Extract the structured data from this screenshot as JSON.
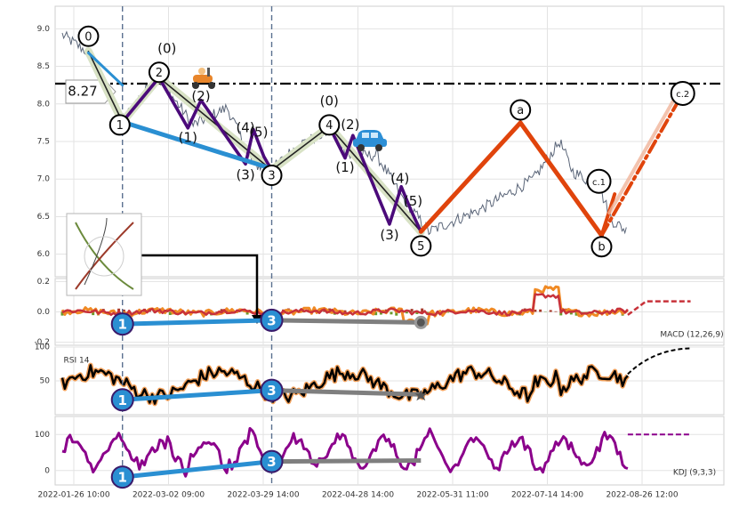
{
  "chart_data": {
    "type": "line",
    "title": "",
    "x_ticks": [
      "2022-01-26 10:00",
      "2022-03-02 09:00",
      "2022-03-29 14:00",
      "2022-04-28 14:00",
      "2022-05-31 11:00",
      "2022-07-14 14:00",
      "2022-08-26 12:00"
    ],
    "price_panel": {
      "ylim": [
        5.7,
        9.3
      ],
      "yticks": [
        "6.0",
        "6.5",
        "7.0",
        "7.5",
        "8.0",
        "8.5",
        "9.0"
      ],
      "horizontal_line": {
        "value": 8.27,
        "label": "8.27"
      },
      "price_path": [
        [
          0.0,
          8.92
        ],
        [
          1.0,
          8.68
        ],
        [
          2.3,
          7.78
        ],
        [
          3.6,
          8.38
        ],
        [
          5.0,
          7.72
        ],
        [
          6.3,
          7.95
        ],
        [
          7.3,
          7.2
        ],
        [
          8.0,
          7.12
        ],
        [
          9.0,
          7.45
        ],
        [
          10.3,
          7.65
        ],
        [
          11.0,
          7.3
        ],
        [
          12.0,
          7.32
        ],
        [
          13.0,
          6.75
        ],
        [
          14.0,
          6.3
        ],
        [
          15.0,
          6.45
        ],
        [
          16.0,
          6.6
        ],
        [
          17.0,
          6.8
        ],
        [
          18.0,
          7.0
        ],
        [
          19.0,
          7.5
        ],
        [
          19.5,
          7.1
        ],
        [
          20.5,
          6.9
        ],
        [
          21.0,
          6.45
        ],
        [
          21.6,
          6.3
        ]
      ],
      "wave_labels": [
        {
          "t": "0",
          "x": 1.0,
          "y": 8.9,
          "circle": true
        },
        {
          "t": "(0)",
          "x": 4.0,
          "y": 8.73,
          "circle": false
        },
        {
          "t": "2",
          "x": 3.7,
          "y": 8.42,
          "circle": true
        },
        {
          "t": "1",
          "x": 2.2,
          "y": 7.72,
          "circle": true
        },
        {
          "t": "(2)",
          "x": 5.3,
          "y": 8.1,
          "circle": false
        },
        {
          "t": "(1)",
          "x": 4.8,
          "y": 7.55,
          "circle": false
        },
        {
          "t": "(4)",
          "x": 7.0,
          "y": 7.68,
          "circle": false
        },
        {
          "t": "(5)",
          "x": 7.5,
          "y": 7.62,
          "circle": false
        },
        {
          "t": "(3)",
          "x": 7.0,
          "y": 7.05,
          "circle": false
        },
        {
          "t": "3",
          "x": 8.0,
          "y": 7.05,
          "circle": true
        },
        {
          "t": "(0)",
          "x": 10.2,
          "y": 8.03,
          "circle": false
        },
        {
          "t": "4",
          "x": 10.2,
          "y": 7.72,
          "circle": true
        },
        {
          "t": "(2)",
          "x": 11.0,
          "y": 7.72,
          "circle": false
        },
        {
          "t": "(1)",
          "x": 10.8,
          "y": 7.15,
          "circle": false
        },
        {
          "t": "(4)",
          "x": 12.9,
          "y": 7.0,
          "circle": false
        },
        {
          "t": "(5)",
          "x": 13.4,
          "y": 6.7,
          "circle": false
        },
        {
          "t": "(3)",
          "x": 12.5,
          "y": 6.25,
          "circle": false
        },
        {
          "t": "5",
          "x": 13.7,
          "y": 6.11,
          "circle": true
        },
        {
          "t": "a",
          "x": 17.5,
          "y": 7.92,
          "circle": true
        },
        {
          "t": "c.1",
          "x": 20.5,
          "y": 6.97,
          "circle": true
        },
        {
          "t": "b",
          "x": 20.6,
          "y": 6.1,
          "circle": true
        },
        {
          "t": "c.2",
          "x": 23.7,
          "y": 8.14,
          "circle": true
        }
      ]
    },
    "macd_panel": {
      "label": "MACD (12,26,9)",
      "ylim": [
        -0.22,
        0.22
      ],
      "yticks": [
        "-0.2",
        "0.0",
        "0.2"
      ]
    },
    "rsi_panel": {
      "label": "RSI 14",
      "ylim": [
        0,
        100
      ],
      "yticks": [
        "50",
        "100"
      ]
    },
    "kdj_panel": {
      "label": "KDJ (9,3,3)",
      "ylim": [
        -40,
        150
      ],
      "yticks": [
        "0",
        "100"
      ]
    },
    "markers": [
      {
        "panel": "macd",
        "t": "1"
      },
      {
        "panel": "macd",
        "t": "3"
      },
      {
        "panel": "rsi",
        "t": "1"
      },
      {
        "panel": "rsi",
        "t": "3"
      },
      {
        "panel": "kdj",
        "t": "1"
      },
      {
        "panel": "kdj",
        "t": "3"
      }
    ],
    "colors": {
      "price": "#5a6578",
      "wave_impulse": "#4b0a7a",
      "wave_minor": "#2a2a2a",
      "correction": "#e0440c",
      "trend_blue": "#2a8fd2",
      "trend_gray": "#7f7f7f",
      "macd_line": "#f08a24",
      "signal_line": "#c8323a",
      "rsi_line": "#000000",
      "rsi_glow": "#f2a05a",
      "kdj_line": "#8b008b"
    }
  }
}
